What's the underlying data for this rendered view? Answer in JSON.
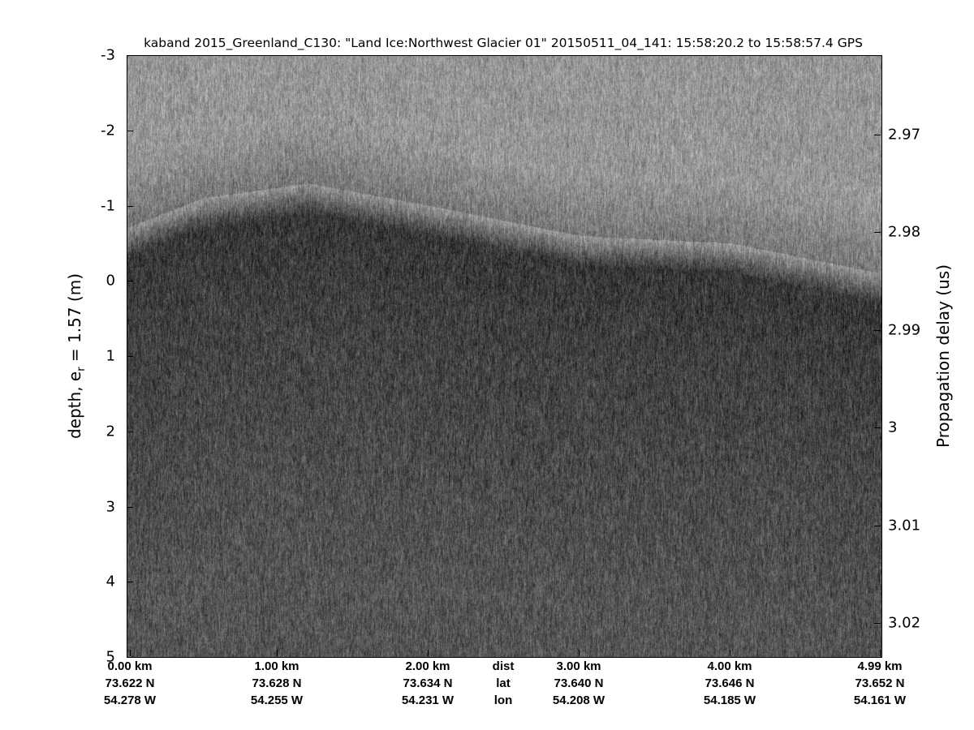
{
  "chart_data": {
    "type": "heatmap",
    "colormap": "grayscale",
    "title": "kaband 2015_Greenland_C130: \"Land Ice:Northwest Glacier 01\"  20150511_04_141: 15:58:20.2 to 15:58:57.4 GPS",
    "ylabel": "depth, e",
    "ylabel_sub": "r",
    "ylabel_rest": " = 1.57 (m)",
    "y2label": "Propagation delay (us)",
    "ylim": [
      -3,
      5
    ],
    "yticks": [
      "-3",
      "-2",
      "-1",
      "0",
      "1",
      "2",
      "3",
      "4",
      "5"
    ],
    "y2ticks": [
      "2.97",
      "2.98",
      "2.99",
      "3",
      "3.01",
      "3.02"
    ],
    "y2tick_values": [
      2.97,
      2.98,
      2.99,
      3.0,
      3.01,
      3.02
    ],
    "xlim_km": [
      0,
      4.99
    ],
    "xlabels": {
      "row_names": [
        "dist",
        "lat",
        "lon"
      ],
      "dist": [
        "0.00 km",
        "1.00 km",
        "2.00 km",
        "3.00 km",
        "4.00 km",
        "4.99 km"
      ],
      "lat": [
        "73.622 N",
        "73.628 N",
        "73.634 N",
        "73.640 N",
        "73.646 N",
        "73.652 N"
      ],
      "lon": [
        "54.278 W",
        "54.255 W",
        "54.231 W",
        "54.208 W",
        "54.185 W",
        "54.161 W"
      ]
    },
    "surface_depth_profile_km_m": [
      [
        0,
        -0.3
      ],
      [
        0.5,
        -0.7
      ],
      [
        1.2,
        -0.9
      ],
      [
        2.0,
        -0.6
      ],
      [
        3.0,
        -0.2
      ],
      [
        4.0,
        -0.1
      ],
      [
        4.99,
        0.3
      ]
    ]
  }
}
